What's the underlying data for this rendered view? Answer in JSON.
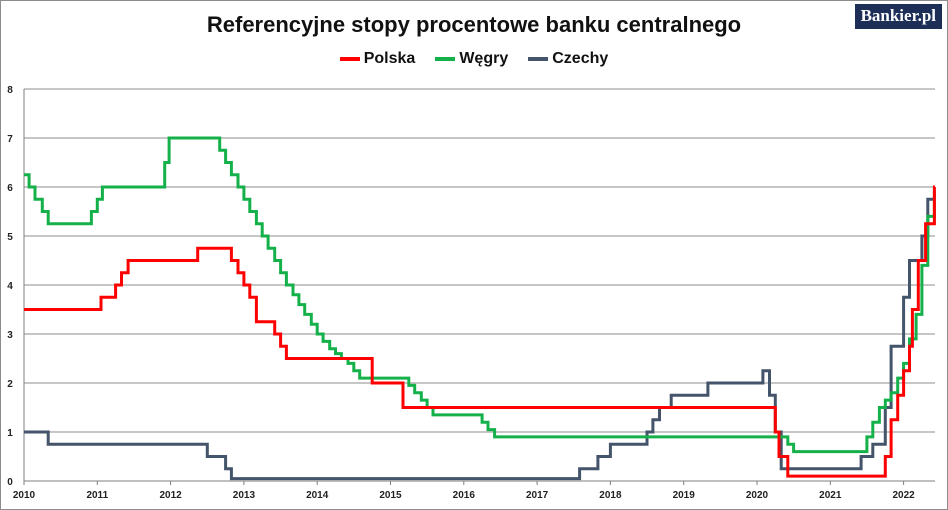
{
  "header": {
    "title": "Referencyjne stopy procentowe banku centralnego",
    "logo": "Bankier.pl"
  },
  "chart_data": {
    "type": "line",
    "title": "Referencyjne stopy procentowe banku centralnego",
    "xlabel": "",
    "ylabel": "",
    "xlim": [
      2010,
      2022.47
    ],
    "ylim": [
      0,
      8
    ],
    "x_ticks": [
      "2010",
      "2011",
      "2012",
      "2013",
      "2014",
      "2015",
      "2016",
      "2017",
      "2018",
      "2019",
      "2020",
      "2021",
      "2022"
    ],
    "y_ticks": [
      "0",
      "1",
      "2",
      "3",
      "4",
      "5",
      "6",
      "7",
      "8"
    ],
    "grid": "horizontal",
    "legend_position": "top",
    "series": [
      {
        "name": "Polska",
        "color": "#ff0000",
        "step": true,
        "points": [
          [
            2010,
            3.5
          ],
          [
            2011.05,
            3.75
          ],
          [
            2011.25,
            4.0
          ],
          [
            2011.33,
            4.25
          ],
          [
            2011.42,
            4.5
          ],
          [
            2012.37,
            4.75
          ],
          [
            2012.83,
            4.5
          ],
          [
            2012.92,
            4.25
          ],
          [
            2013.0,
            4.0
          ],
          [
            2013.08,
            3.75
          ],
          [
            2013.17,
            3.25
          ],
          [
            2013.42,
            3.0
          ],
          [
            2013.5,
            2.75
          ],
          [
            2013.58,
            2.5
          ],
          [
            2014.75,
            2.0
          ],
          [
            2015.17,
            1.5
          ],
          [
            2020.25,
            1.0
          ],
          [
            2020.3,
            0.5
          ],
          [
            2020.42,
            0.1
          ],
          [
            2021.75,
            0.5
          ],
          [
            2021.83,
            1.25
          ],
          [
            2021.92,
            1.75
          ],
          [
            2022.0,
            2.25
          ],
          [
            2022.08,
            2.75
          ],
          [
            2022.12,
            3.5
          ],
          [
            2022.2,
            4.5
          ],
          [
            2022.3,
            5.25
          ],
          [
            2022.42,
            6.0
          ]
        ]
      },
      {
        "name": "Węgry",
        "color": "#14b14a",
        "step": true,
        "points": [
          [
            2010,
            6.25
          ],
          [
            2010.07,
            6.0
          ],
          [
            2010.15,
            5.75
          ],
          [
            2010.25,
            5.5
          ],
          [
            2010.33,
            5.25
          ],
          [
            2010.92,
            5.5
          ],
          [
            2011.0,
            5.75
          ],
          [
            2011.07,
            6.0
          ],
          [
            2011.92,
            6.5
          ],
          [
            2011.98,
            7.0
          ],
          [
            2012.67,
            6.75
          ],
          [
            2012.75,
            6.5
          ],
          [
            2012.83,
            6.25
          ],
          [
            2012.92,
            6.0
          ],
          [
            2013.0,
            5.75
          ],
          [
            2013.08,
            5.5
          ],
          [
            2013.17,
            5.25
          ],
          [
            2013.25,
            5.0
          ],
          [
            2013.33,
            4.75
          ],
          [
            2013.42,
            4.5
          ],
          [
            2013.5,
            4.25
          ],
          [
            2013.58,
            4.0
          ],
          [
            2013.67,
            3.8
          ],
          [
            2013.75,
            3.6
          ],
          [
            2013.83,
            3.4
          ],
          [
            2013.92,
            3.2
          ],
          [
            2014.0,
            3.0
          ],
          [
            2014.08,
            2.85
          ],
          [
            2014.17,
            2.7
          ],
          [
            2014.25,
            2.6
          ],
          [
            2014.33,
            2.5
          ],
          [
            2014.42,
            2.4
          ],
          [
            2014.5,
            2.25
          ],
          [
            2014.58,
            2.1
          ],
          [
            2015.25,
            1.95
          ],
          [
            2015.33,
            1.8
          ],
          [
            2015.42,
            1.65
          ],
          [
            2015.5,
            1.5
          ],
          [
            2015.58,
            1.35
          ],
          [
            2016.25,
            1.2
          ],
          [
            2016.33,
            1.05
          ],
          [
            2016.42,
            0.9
          ],
          [
            2020.42,
            0.75
          ],
          [
            2020.5,
            0.6
          ],
          [
            2021.5,
            0.9
          ],
          [
            2021.58,
            1.2
          ],
          [
            2021.67,
            1.5
          ],
          [
            2021.75,
            1.65
          ],
          [
            2021.83,
            1.8
          ],
          [
            2021.92,
            2.1
          ],
          [
            2022.0,
            2.4
          ],
          [
            2022.08,
            2.9
          ],
          [
            2022.17,
            3.4
          ],
          [
            2022.25,
            4.4
          ],
          [
            2022.33,
            5.4
          ],
          [
            2022.42,
            5.9
          ]
        ]
      },
      {
        "name": "Czechy",
        "color": "#44546a",
        "step": true,
        "points": [
          [
            2010,
            1.0
          ],
          [
            2010.33,
            0.75
          ],
          [
            2012.5,
            0.5
          ],
          [
            2012.75,
            0.25
          ],
          [
            2012.83,
            0.05
          ],
          [
            2017.58,
            0.25
          ],
          [
            2017.83,
            0.5
          ],
          [
            2018.0,
            0.75
          ],
          [
            2018.5,
            1.0
          ],
          [
            2018.58,
            1.25
          ],
          [
            2018.67,
            1.5
          ],
          [
            2018.83,
            1.75
          ],
          [
            2019.33,
            2.0
          ],
          [
            2020.08,
            2.25
          ],
          [
            2020.17,
            1.75
          ],
          [
            2020.25,
            1.0
          ],
          [
            2020.33,
            0.25
          ],
          [
            2021.42,
            0.5
          ],
          [
            2021.58,
            0.75
          ],
          [
            2021.75,
            1.5
          ],
          [
            2021.83,
            2.75
          ],
          [
            2022.0,
            3.75
          ],
          [
            2022.08,
            4.5
          ],
          [
            2022.25,
            5.0
          ],
          [
            2022.33,
            5.75
          ]
        ]
      }
    ]
  }
}
